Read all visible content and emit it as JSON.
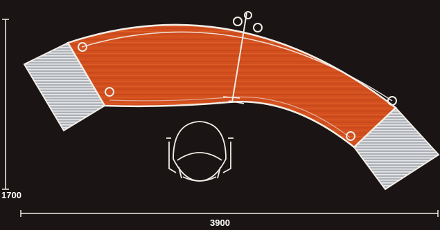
{
  "drawing": {
    "dimensions": {
      "width_label": "3900",
      "height_label": "1700"
    },
    "colors": {
      "background": "#1a1414",
      "desk_top": "#d24f1e",
      "desk_top_light": "#e8652c",
      "outline": "#f2ede6",
      "side_panel": "#b9bcc2",
      "side_panel_lines": "#e9ebee"
    }
  }
}
